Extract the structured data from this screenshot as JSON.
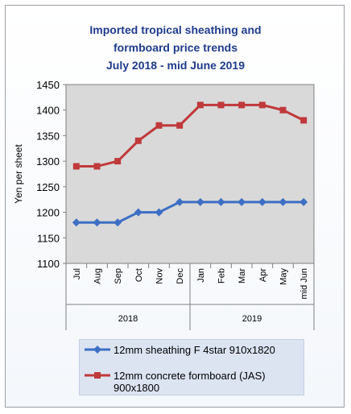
{
  "chart_data": {
    "type": "line",
    "title": [
      "Imported tropical sheathing and",
      "formboard price trends",
      "July 2018 - mid June 2019"
    ],
    "ylabel": "Yen per sheet",
    "ylim": [
      1100,
      1450
    ],
    "yticks": [
      1100,
      1150,
      1200,
      1250,
      1300,
      1350,
      1400,
      1450
    ],
    "grid": false,
    "legend_position": "bottom",
    "categories": [
      "Jul",
      "Aug",
      "Sep",
      "Oct",
      "Nov",
      "Dec",
      "Jan",
      "Feb",
      "Mar",
      "Apr",
      "May",
      "mid Jun"
    ],
    "groups": [
      {
        "label": "2018",
        "from": 0,
        "to": 5
      },
      {
        "label": "2019",
        "from": 6,
        "to": 11
      }
    ],
    "series": [
      {
        "name": "12mm sheathing F 4star 910x1820",
        "color": "#3d6fc4",
        "marker": "diamond",
        "values": [
          1180,
          1180,
          1180,
          1200,
          1200,
          1220,
          1220,
          1220,
          1220,
          1220,
          1220,
          1220
        ]
      },
      {
        "name": "12mm concrete formboard (JAS)",
        "name_line2": "900x1800",
        "color": "#c0393b",
        "marker": "square",
        "values": [
          1290,
          1290,
          1300,
          1340,
          1370,
          1370,
          1410,
          1410,
          1410,
          1410,
          1400,
          1380
        ]
      }
    ]
  }
}
